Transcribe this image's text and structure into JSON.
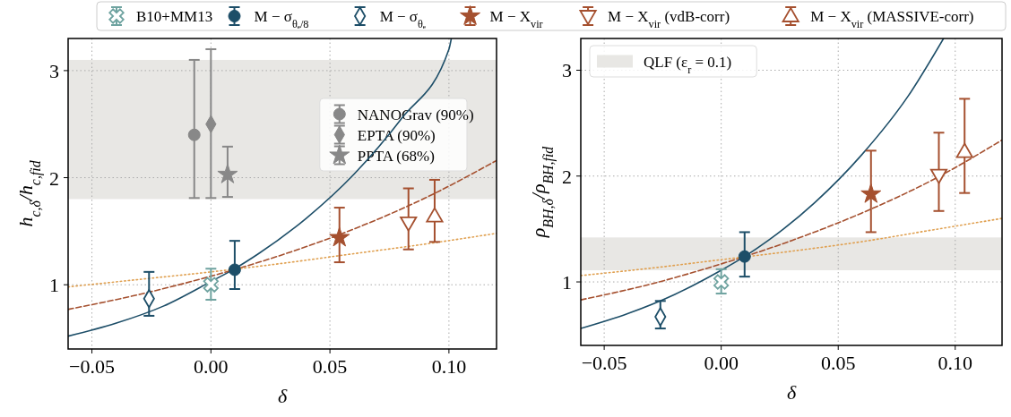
{
  "chart_data": [
    {
      "type": "scatter",
      "xlabel": "δ",
      "ylabel": "h$_{c,δ}$/h$_{c,fid}$",
      "xlim": [
        -0.06,
        0.12
      ],
      "ylim": [
        0.4,
        3.3
      ],
      "xticks": [
        {
          "value": -0.05,
          "label": "−0.05"
        },
        {
          "value": 0,
          "label": "0.00"
        },
        {
          "value": 0.05,
          "label": "0.05"
        },
        {
          "value": 0.1,
          "label": "0.10"
        }
      ],
      "yticks": [
        1,
        2,
        3
      ],
      "grid": true,
      "legend": "top right",
      "bands": [
        {
          "axis": "y",
          "from": 1.8,
          "to": 3.1,
          "color": "#e8e7e4"
        }
      ],
      "series": [
        {
          "type": "line",
          "color": "#1d4e68",
          "line_style": "solid",
          "x": [
            -0.06,
            -0.04,
            -0.02,
            0,
            0.01,
            0.02,
            0.04,
            0.06,
            0.08,
            0.1,
            0.101
          ],
          "values": [
            0.52,
            0.64,
            0.8,
            1.03,
            1.15,
            1.29,
            1.62,
            2.03,
            2.55,
            3.2,
            3.3
          ]
        },
        {
          "type": "line",
          "color": "#a5502f",
          "line_style": "dashed",
          "x": [
            -0.06,
            -0.03,
            0,
            0.03,
            0.06,
            0.09,
            0.12
          ],
          "values": [
            0.77,
            0.91,
            1.08,
            1.28,
            1.52,
            1.81,
            2.16
          ]
        },
        {
          "type": "line",
          "color": "#e0a050",
          "line_style": "dotted",
          "x": [
            -0.06,
            -0.03,
            0,
            0.03,
            0.06,
            0.09,
            0.12
          ],
          "values": [
            0.98,
            1.05,
            1.12,
            1.2,
            1.29,
            1.38,
            1.48
          ]
        },
        {
          "name": "B10+MM13",
          "color": "#6fa3a0",
          "marker": "cross-open",
          "x": [
            0
          ],
          "values": [
            1.0
          ],
          "errors": [
            [
              0.86,
              1.15
            ]
          ]
        },
        {
          "name": "M − σ$_{θₑ/8}$",
          "color": "#1d4e68",
          "marker": "circle",
          "x": [
            0.01
          ],
          "values": [
            1.14
          ],
          "errors": [
            [
              0.96,
              1.41
            ]
          ]
        },
        {
          "name": "M − σ$_{θₑ}$",
          "color": "#1d4e68",
          "marker": "diamond-open",
          "x": [
            -0.026
          ],
          "values": [
            0.87
          ],
          "errors": [
            [
              0.71,
              1.12
            ]
          ]
        },
        {
          "name": "M − X$_{vir}$",
          "color": "#a5502f",
          "marker": "star",
          "x": [
            0.054
          ],
          "values": [
            1.44
          ],
          "errors": [
            [
              1.21,
              1.72
            ]
          ]
        },
        {
          "name": "M − X$_{vir}$ (vdB-corr)",
          "color": "#a5502f",
          "marker": "triangle-down-open",
          "x": [
            0.083
          ],
          "values": [
            1.58
          ],
          "errors": [
            [
              1.33,
              1.9
            ]
          ]
        },
        {
          "name": "M − X$_{vir}$ (MASSIVE-corr)",
          "color": "#a5502f",
          "marker": "triangle-open",
          "x": [
            0.094
          ],
          "values": [
            1.64
          ],
          "errors": [
            [
              1.4,
              1.98
            ]
          ]
        },
        {
          "name": "NANOGrav (90%)",
          "color": "#888888",
          "marker": "circle",
          "x": [
            -0.007
          ],
          "values": [
            2.4
          ],
          "errors": [
            [
              1.81,
              3.1
            ]
          ]
        },
        {
          "name": "EPTA (90%)",
          "color": "#888888",
          "marker": "diamond",
          "x": [
            0
          ],
          "values": [
            2.5
          ],
          "errors": [
            [
              1.81,
              3.2
            ]
          ]
        },
        {
          "name": "PPTA (68%)",
          "color": "#888888",
          "marker": "star",
          "x": [
            0.007
          ],
          "values": [
            2.03
          ],
          "errors": [
            [
              1.82,
              2.29
            ]
          ]
        }
      ]
    },
    {
      "type": "scatter",
      "xlabel": "δ",
      "ylabel": "ρ$_{BH,δ}$/ρ$_{BH,fid}$",
      "xlim": [
        -0.06,
        0.12
      ],
      "ylim": [
        0.4,
        3.3
      ],
      "xticks": [
        {
          "value": -0.05,
          "label": "−0.05"
        },
        {
          "value": 0,
          "label": "0.00"
        },
        {
          "value": 0.05,
          "label": "0.05"
        },
        {
          "value": 0.1,
          "label": "0.10"
        }
      ],
      "yticks": [
        1,
        2,
        3
      ],
      "grid": true,
      "legend": "top left",
      "bands": [
        {
          "axis": "y",
          "from": 1.11,
          "to": 1.42,
          "color": "#e8e7e4",
          "label": "QLF (ε$_{r}$ = 0.1)"
        }
      ],
      "series": [
        {
          "type": "line",
          "color": "#1d4e68",
          "line_style": "solid",
          "x": [
            -0.06,
            -0.04,
            -0.02,
            0,
            0.01,
            0.02,
            0.04,
            0.06,
            0.08,
            0.095
          ],
          "values": [
            0.56,
            0.7,
            0.88,
            1.11,
            1.24,
            1.39,
            1.75,
            2.2,
            2.76,
            3.3
          ]
        },
        {
          "type": "line",
          "color": "#a5502f",
          "line_style": "dashed",
          "x": [
            -0.06,
            -0.03,
            0,
            0.03,
            0.06,
            0.09,
            0.12
          ],
          "values": [
            0.83,
            0.98,
            1.17,
            1.39,
            1.65,
            1.96,
            2.34
          ]
        },
        {
          "type": "line",
          "color": "#e0a050",
          "line_style": "dotted",
          "x": [
            -0.06,
            -0.03,
            0,
            0.03,
            0.06,
            0.09,
            0.12
          ],
          "values": [
            1.06,
            1.13,
            1.21,
            1.29,
            1.38,
            1.49,
            1.6
          ]
        },
        {
          "name": "B10+MM13",
          "color": "#6fa3a0",
          "marker": "cross-open",
          "x": [
            0
          ],
          "values": [
            1.0
          ],
          "errors": [
            [
              0.89,
              1.12
            ]
          ]
        },
        {
          "name": "M − σ$_{θₑ/8}$",
          "color": "#1d4e68",
          "marker": "circle",
          "x": [
            0.01
          ],
          "values": [
            1.24
          ],
          "errors": [
            [
              1.05,
              1.47
            ]
          ]
        },
        {
          "name": "M − σ$_{θₑ}$",
          "color": "#1d4e68",
          "marker": "diamond-open",
          "x": [
            -0.026
          ],
          "values": [
            0.67
          ],
          "errors": [
            [
              0.56,
              0.82
            ]
          ]
        },
        {
          "name": "M − X$_{vir}$",
          "color": "#a5502f",
          "marker": "star",
          "x": [
            0.064
          ],
          "values": [
            1.83
          ],
          "errors": [
            [
              1.47,
              2.24
            ]
          ]
        },
        {
          "name": "M − X$_{vir}$ (vdB-corr)",
          "color": "#a5502f",
          "marker": "triangle-down-open",
          "x": [
            0.093
          ],
          "values": [
            2.01
          ],
          "errors": [
            [
              1.67,
              2.41
            ]
          ]
        },
        {
          "name": "M − X$_{vir}$ (MASSIVE-corr)",
          "color": "#a5502f",
          "marker": "triangle-open",
          "x": [
            0.104
          ],
          "values": [
            2.23
          ],
          "errors": [
            [
              1.84,
              2.73
            ]
          ]
        }
      ]
    }
  ]
}
